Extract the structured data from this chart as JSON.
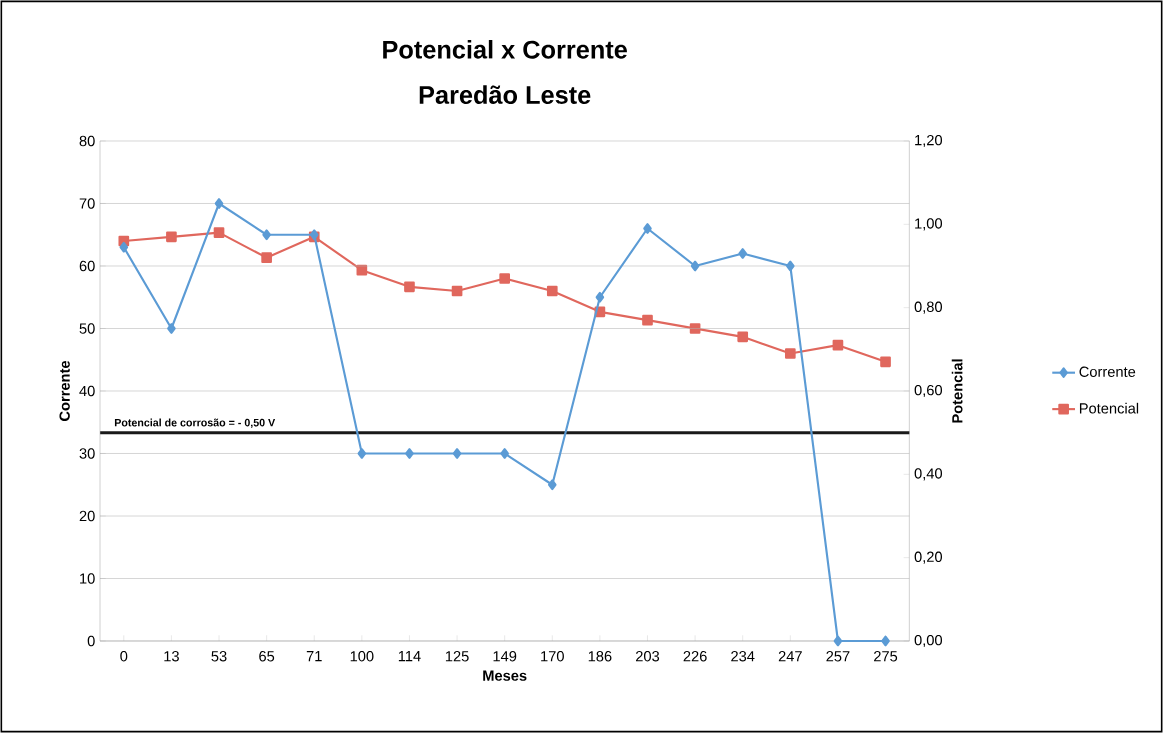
{
  "chart_data": {
    "type": "line",
    "title": "Potencial x Corrente",
    "subtitle": "Paredão Leste",
    "xlabel": "Meses",
    "ylabel": "Corrente",
    "y2label": "Potencial",
    "categories": [
      "0",
      "13",
      "53",
      "65",
      "71",
      "100",
      "114",
      "125",
      "149",
      "170",
      "186",
      "203",
      "226",
      "234",
      "247",
      "257",
      "275"
    ],
    "series": [
      {
        "name": "Corrente",
        "color": "#5b9bd5",
        "marker": "diamond",
        "values": [
          63,
          50,
          70,
          65,
          65,
          30,
          30,
          30,
          30,
          25,
          55,
          66,
          60,
          62,
          60,
          0,
          0
        ]
      },
      {
        "name": "Potencial",
        "color": "#e0675d",
        "marker": "square",
        "axis": "y2",
        "values": [
          0.96,
          0.97,
          0.98,
          0.92,
          0.97,
          0.89,
          0.85,
          0.84,
          0.87,
          0.84,
          0.79,
          0.77,
          0.75,
          0.73,
          0.69,
          0.71,
          0.67
        ]
      }
    ],
    "ylim": [
      0,
      80
    ],
    "yticks": [
      0,
      10,
      20,
      30,
      40,
      50,
      60,
      70,
      80
    ],
    "y2lim": [
      0,
      1.2
    ],
    "y2ticks": [
      {
        "value": 0,
        "label": "0,00"
      },
      {
        "value": 0.2,
        "label": "0,20"
      },
      {
        "value": 0.4,
        "label": "0,40"
      },
      {
        "value": 0.6,
        "label": "0,60"
      },
      {
        "value": 0.8,
        "label": "0,80"
      },
      {
        "value": 1.0,
        "label": "1,00"
      },
      {
        "value": 1.2,
        "label": "1,20"
      }
    ],
    "ref_lines": [
      {
        "axis": "y2",
        "value": 0.5,
        "label": "Potencial de corrosão = - 0,50 V",
        "color": "#1a1a1a"
      }
    ],
    "grid": "y",
    "legend": "right",
    "line_style": "solid"
  }
}
